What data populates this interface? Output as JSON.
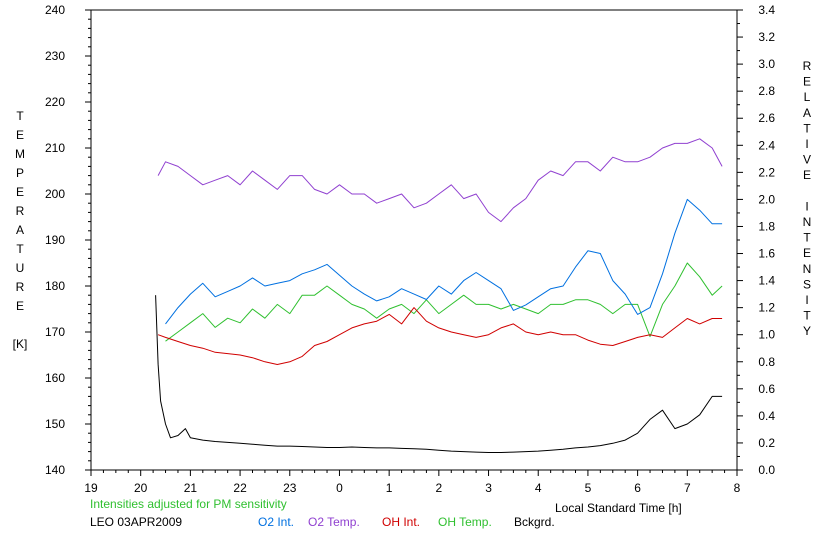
{
  "chart_data": {
    "type": "line",
    "xlabel": "Local Standard Time [h]",
    "ylabel_left": [
      "T",
      "E",
      "M",
      "P",
      "E",
      "R",
      "A",
      "T",
      "U",
      "R",
      "E",
      "",
      "[K]"
    ],
    "ylabel_right": [
      "R",
      "E",
      "L",
      "A",
      "T",
      "I",
      "V",
      "E",
      "",
      "I",
      "N",
      "T",
      "E",
      "N",
      "S",
      "I",
      "T",
      "Y"
    ],
    "note": "Intensities adjusted for PM sensitivity",
    "site_date": "LEO 03APR2009",
    "x_ticks": [
      "19",
      "20",
      "21",
      "22",
      "23",
      "0",
      "1",
      "2",
      "3",
      "4",
      "5",
      "6",
      "7",
      "8"
    ],
    "x_range": [
      19,
      32
    ],
    "y_left_ticks": [
      "140",
      "150",
      "160",
      "170",
      "180",
      "190",
      "200",
      "210",
      "220",
      "230",
      "240"
    ],
    "y_left_range": [
      140,
      240
    ],
    "y_right_ticks": [
      "0.0",
      "0.2",
      "0.4",
      "0.6",
      "0.8",
      "1.0",
      "1.2",
      "1.4",
      "1.6",
      "1.8",
      "2.0",
      "2.2",
      "2.4",
      "2.6",
      "2.8",
      "3.0",
      "3.2",
      "3.4"
    ],
    "y_right_range": [
      0,
      3.4
    ],
    "grid": false,
    "legend_position": "bottom",
    "series": [
      {
        "name": "O2 Int.",
        "axis": "right",
        "color": "#0070e0",
        "x": [
          20.5,
          20.75,
          21.0,
          21.25,
          21.5,
          21.75,
          22.0,
          22.25,
          22.5,
          22.75,
          23.0,
          23.25,
          23.5,
          23.75,
          24.0,
          24.25,
          24.5,
          24.75,
          25.0,
          25.25,
          25.5,
          25.75,
          26.0,
          26.25,
          26.5,
          26.75,
          27.0,
          27.25,
          27.5,
          27.75,
          28.0,
          28.25,
          28.5,
          28.75,
          29.0,
          29.25,
          29.5,
          29.75,
          30.0,
          30.25,
          30.5,
          30.75,
          31.0,
          31.25,
          31.5,
          31.7
        ],
        "y": [
          1.08,
          1.2,
          1.3,
          1.38,
          1.28,
          1.32,
          1.36,
          1.42,
          1.36,
          1.38,
          1.4,
          1.45,
          1.48,
          1.52,
          1.44,
          1.36,
          1.3,
          1.25,
          1.28,
          1.34,
          1.3,
          1.26,
          1.36,
          1.3,
          1.4,
          1.46,
          1.4,
          1.34,
          1.18,
          1.22,
          1.28,
          1.34,
          1.36,
          1.5,
          1.62,
          1.6,
          1.4,
          1.3,
          1.15,
          1.2,
          1.45,
          1.75,
          2.0,
          1.92,
          1.82,
          1.82
        ]
      },
      {
        "name": "O2 Temp.",
        "axis": "left",
        "color": "#9040d0",
        "x": [
          20.35,
          20.5,
          20.75,
          21.0,
          21.25,
          21.5,
          21.75,
          22.0,
          22.25,
          22.5,
          22.75,
          23.0,
          23.25,
          23.5,
          23.75,
          24.0,
          24.25,
          24.5,
          24.75,
          25.0,
          25.25,
          25.5,
          25.75,
          26.0,
          26.25,
          26.5,
          26.75,
          27.0,
          27.25,
          27.5,
          27.75,
          28.0,
          28.25,
          28.5,
          28.75,
          29.0,
          29.25,
          29.5,
          29.75,
          30.0,
          30.25,
          30.5,
          30.75,
          31.0,
          31.25,
          31.5,
          31.7
        ],
        "y": [
          204,
          207,
          206,
          204,
          202,
          203,
          204,
          202,
          205,
          203,
          201,
          204,
          204,
          201,
          200,
          202,
          200,
          200,
          198,
          199,
          200,
          197,
          198,
          200,
          202,
          199,
          200,
          196,
          194,
          197,
          199,
          203,
          205,
          204,
          207,
          207,
          205,
          208,
          207,
          207,
          208,
          210,
          211,
          211,
          212,
          210,
          206
        ]
      },
      {
        "name": "OH Int.",
        "axis": "right",
        "color": "#d00000",
        "x": [
          20.35,
          20.5,
          20.75,
          21.0,
          21.25,
          21.5,
          21.75,
          22.0,
          22.25,
          22.5,
          22.75,
          23.0,
          23.25,
          23.5,
          23.75,
          24.0,
          24.25,
          24.5,
          24.75,
          25.0,
          25.25,
          25.5,
          25.75,
          26.0,
          26.25,
          26.5,
          26.75,
          27.0,
          27.25,
          27.5,
          27.75,
          28.0,
          28.25,
          28.5,
          28.75,
          29.0,
          29.25,
          29.5,
          29.75,
          30.0,
          30.25,
          30.5,
          30.75,
          31.0,
          31.25,
          31.5,
          31.7
        ],
        "y": [
          1.0,
          0.98,
          0.95,
          0.92,
          0.9,
          0.87,
          0.86,
          0.85,
          0.83,
          0.8,
          0.78,
          0.8,
          0.84,
          0.92,
          0.95,
          1.0,
          1.05,
          1.08,
          1.1,
          1.15,
          1.08,
          1.2,
          1.1,
          1.05,
          1.02,
          1.0,
          0.98,
          1.0,
          1.05,
          1.08,
          1.02,
          1.0,
          1.02,
          1.0,
          1.0,
          0.96,
          0.93,
          0.92,
          0.95,
          0.98,
          1.0,
          0.98,
          1.05,
          1.12,
          1.08,
          1.12,
          1.12
        ]
      },
      {
        "name": "OH Temp.",
        "axis": "left",
        "color": "#30c030",
        "x": [
          20.5,
          20.75,
          21.0,
          21.25,
          21.5,
          21.75,
          22.0,
          22.25,
          22.5,
          22.75,
          23.0,
          23.25,
          23.5,
          23.75,
          24.0,
          24.25,
          24.5,
          24.75,
          25.0,
          25.25,
          25.5,
          25.75,
          26.0,
          26.25,
          26.5,
          26.75,
          27.0,
          27.25,
          27.5,
          27.75,
          28.0,
          28.25,
          28.5,
          28.75,
          29.0,
          29.25,
          29.5,
          29.75,
          30.0,
          30.25,
          30.5,
          30.75,
          31.0,
          31.25,
          31.5,
          31.7
        ],
        "y": [
          168,
          170,
          172,
          174,
          171,
          173,
          172,
          175,
          173,
          176,
          174,
          178,
          178,
          180,
          178,
          176,
          175,
          173,
          175,
          176,
          174,
          177,
          174,
          176,
          178,
          176,
          176,
          175,
          176,
          175,
          174,
          176,
          176,
          177,
          177,
          176,
          174,
          176,
          176,
          169,
          176,
          180,
          185,
          182,
          178,
          180
        ]
      },
      {
        "name": "Bckgrd.",
        "axis": "left",
        "color": "#000000",
        "x": [
          20.3,
          20.35,
          20.4,
          20.5,
          20.6,
          20.75,
          20.9,
          21.0,
          21.25,
          21.5,
          21.75,
          22.0,
          22.25,
          22.5,
          22.75,
          23.0,
          23.25,
          23.5,
          23.75,
          24.0,
          24.25,
          24.5,
          24.75,
          25.0,
          25.25,
          25.5,
          25.75,
          26.0,
          26.25,
          26.5,
          26.75,
          27.0,
          27.25,
          27.5,
          27.75,
          28.0,
          28.25,
          28.5,
          28.75,
          29.0,
          29.25,
          29.5,
          29.75,
          30.0,
          30.25,
          30.5,
          30.75,
          31.0,
          31.25,
          31.5,
          31.7
        ],
        "y": [
          178,
          163,
          155,
          150,
          147,
          147.5,
          149,
          147,
          146.5,
          146.2,
          146,
          145.8,
          145.6,
          145.4,
          145.2,
          145.2,
          145.1,
          145,
          144.9,
          144.9,
          145,
          144.9,
          144.8,
          144.8,
          144.7,
          144.6,
          144.5,
          144.3,
          144.1,
          144,
          143.9,
          143.8,
          143.8,
          143.9,
          144,
          144.1,
          144.3,
          144.5,
          144.8,
          145,
          145.3,
          145.8,
          146.5,
          148,
          151,
          153,
          149,
          150,
          152,
          156,
          156
        ]
      }
    ]
  }
}
